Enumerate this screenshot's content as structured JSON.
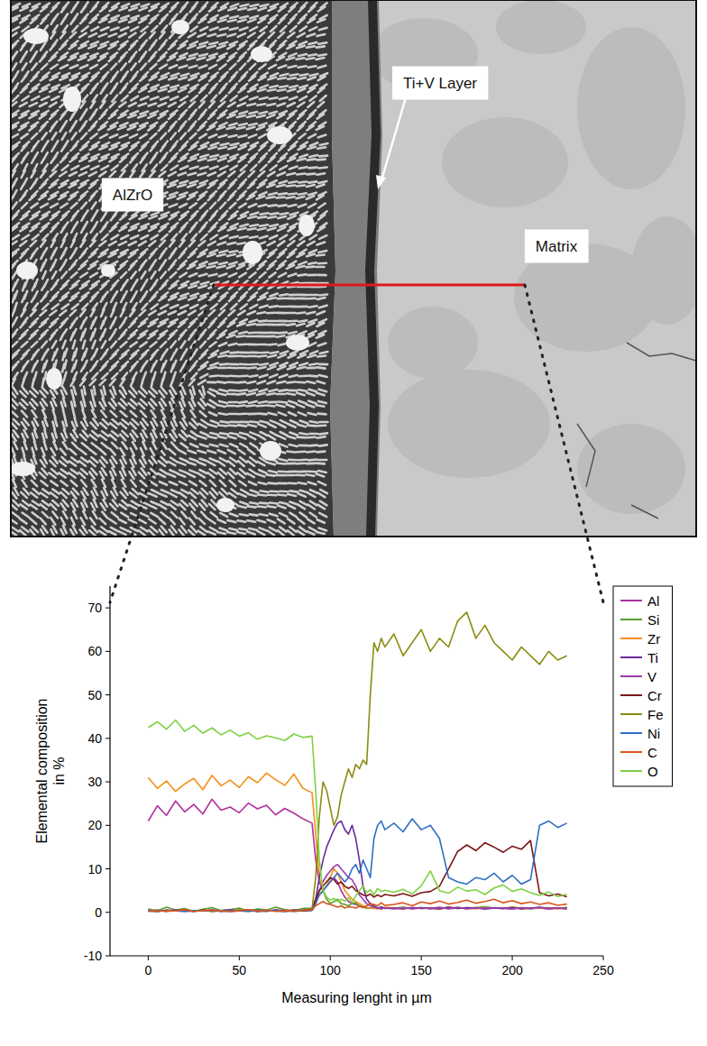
{
  "image": {
    "labels": [
      "AlZrO",
      "Ti+V Layer",
      "Matrix"
    ]
  },
  "chart_data": {
    "type": "line",
    "x_label": "Measuring lenght in µm",
    "y_label": "Elemental composition in %",
    "xlim": [
      -21,
      250
    ],
    "xticks": [
      0,
      50,
      100,
      150,
      200,
      250
    ],
    "ylim": [
      -10,
      75
    ],
    "yticks": [
      -10,
      0,
      10,
      20,
      30,
      40,
      50,
      60,
      70
    ],
    "legend": "right",
    "grid": false,
    "x": [
      0,
      5,
      10,
      15,
      20,
      25,
      30,
      35,
      40,
      45,
      50,
      55,
      60,
      65,
      70,
      75,
      80,
      85,
      90,
      92,
      94,
      96,
      98,
      100,
      102,
      104,
      106,
      108,
      110,
      112,
      114,
      116,
      118,
      120,
      122,
      124,
      126,
      128,
      130,
      135,
      140,
      145,
      150,
      155,
      160,
      165,
      170,
      175,
      180,
      185,
      190,
      195,
      200,
      205,
      210,
      215,
      220,
      225,
      230
    ],
    "series": [
      {
        "name": "Al",
        "color": "#b0309c",
        "values": [
          21,
          24.5,
          22.3,
          25.6,
          23.1,
          24.8,
          22.6,
          26,
          23.5,
          24.2,
          22.9,
          25.1,
          23.8,
          24.6,
          22.4,
          23.9,
          22.8,
          21.5,
          20.5,
          12,
          7,
          5,
          6,
          7,
          8,
          7,
          5,
          3.5,
          2.5,
          2,
          1.8,
          1.5,
          1.2,
          1,
          1,
          0.9,
          1,
          0.8,
          1,
          0.9,
          1.1,
          0.8,
          1,
          0.9,
          1.2,
          0.8,
          1,
          0.9,
          1.1,
          0.8,
          1,
          0.9,
          0.8,
          1.1,
          0.9,
          1,
          0.8,
          1,
          0.9
        ]
      },
      {
        "name": "Si",
        "color": "#5c9e2e",
        "values": [
          0.8,
          0.3,
          1.2,
          0.5,
          0.9,
          0.2,
          0.7,
          1.1,
          0.4,
          0.6,
          1,
          0.3,
          0.8,
          0.5,
          1.2,
          0.6,
          0.4,
          0.9,
          1,
          2.5,
          4,
          5,
          3,
          2,
          2.5,
          3,
          2,
          1.8,
          1.5,
          2,
          2.2,
          1.5,
          1.2,
          1,
          1.1,
          1,
          0.9,
          1.2,
          1,
          1,
          1.2,
          0.9,
          1.1,
          1,
          0.8,
          1.2,
          1,
          0.9,
          1.1,
          1.3,
          1,
          0.9,
          1.2,
          1,
          0.8,
          1.1,
          1,
          0.9,
          1.2
        ]
      },
      {
        "name": "Zr",
        "color": "#f39019",
        "values": [
          31,
          28.5,
          30.2,
          27.8,
          29.5,
          30.8,
          28.2,
          31.5,
          29.1,
          30.4,
          28.7,
          31.2,
          29.8,
          32,
          30.5,
          29.2,
          31.8,
          28.5,
          27.5,
          18,
          8,
          5,
          6,
          8,
          10,
          9,
          7,
          5,
          4,
          3,
          2.5,
          2,
          1.5,
          1.2,
          1,
          1,
          0.8,
          1,
          1.2,
          1,
          0.8,
          1.1,
          0.9,
          1,
          0.7,
          1.2,
          0.9,
          1,
          0.8,
          1.1,
          1,
          0.9,
          1.2,
          0.8,
          1,
          0.9,
          1.1,
          0.8,
          1
        ]
      },
      {
        "name": "Ti",
        "color": "#6b2a9c",
        "values": [
          0.3,
          0.5,
          0.2,
          0.6,
          0.4,
          0.3,
          0.5,
          0.2,
          0.4,
          0.6,
          0.3,
          0.5,
          0.4,
          0.2,
          0.6,
          0.3,
          0.5,
          0.4,
          0.8,
          3,
          8,
          12,
          15,
          17,
          19,
          20.5,
          21,
          19,
          18,
          20,
          17,
          12,
          6,
          3,
          2,
          1.5,
          1,
          1.2,
          0.9,
          1,
          0.8,
          1.1,
          0.9,
          1,
          0.8,
          1.2,
          0.9,
          1.1,
          1,
          0.8,
          1,
          0.9,
          1.1,
          0.8,
          1,
          1.2,
          0.9,
          1,
          0.8
        ]
      },
      {
        "name": "V",
        "color": "#9b3fa8",
        "values": [
          0.2,
          0.4,
          0.3,
          0.5,
          0.2,
          0.4,
          0.3,
          0.6,
          0.2,
          0.4,
          0.3,
          0.5,
          0.2,
          0.4,
          0.3,
          0.5,
          0.2,
          0.4,
          0.5,
          2,
          5,
          7,
          8.5,
          9.5,
          10.5,
          11,
          10,
          9,
          8,
          7.5,
          6,
          4,
          3,
          2,
          1.5,
          1.2,
          1,
          0.9,
          1,
          0.8,
          1,
          0.9,
          1.1,
          0.8,
          1,
          0.9,
          1.2,
          0.8,
          1,
          0.9,
          1.1,
          1,
          0.8,
          1,
          0.9,
          1.1,
          0.8,
          1,
          0.9
        ]
      },
      {
        "name": "Cr",
        "color": "#7b1616",
        "values": [
          0.3,
          0.2,
          0.5,
          0.3,
          0.4,
          0.2,
          0.5,
          0.3,
          0.4,
          0.2,
          0.3,
          0.5,
          0.2,
          0.4,
          0.3,
          0.2,
          0.5,
          0.3,
          0.5,
          3,
          5,
          6,
          7,
          8,
          7.5,
          6.5,
          7,
          6,
          5.5,
          6,
          5,
          4.5,
          4,
          3.8,
          4.2,
          3.5,
          4,
          3.6,
          4.1,
          3.8,
          4.3,
          3.7,
          4.5,
          4.8,
          6,
          10,
          14,
          15.5,
          14.2,
          16,
          15,
          13.8,
          15.2,
          14.5,
          16.5,
          4.5,
          3.8,
          4.2,
          3.6
        ]
      },
      {
        "name": "Fe",
        "color": "#8c8c12",
        "values": [
          0.3,
          0.5,
          0.2,
          0.4,
          0.6,
          0.3,
          0.5,
          0.2,
          0.4,
          0.3,
          0.6,
          0.2,
          0.4,
          0.5,
          0.3,
          0.4,
          0.2,
          0.5,
          0.8,
          8,
          22,
          30,
          28,
          24,
          20,
          22,
          27,
          30,
          33,
          31,
          34,
          33,
          35,
          34,
          50,
          62,
          60,
          63,
          61,
          64,
          59,
          62,
          65,
          60,
          63,
          61,
          67,
          69,
          63,
          66,
          62,
          60,
          58,
          61,
          59,
          57,
          60,
          58,
          59
        ]
      },
      {
        "name": "Ni",
        "color": "#2f6fc4",
        "values": [
          0.4,
          0.2,
          0.5,
          0.3,
          0.2,
          0.4,
          0.3,
          0.5,
          0.2,
          0.4,
          0.3,
          0.2,
          0.5,
          0.3,
          0.4,
          0.2,
          0.3,
          0.5,
          0.5,
          2,
          4,
          5,
          6,
          7,
          8,
          9,
          8,
          7,
          8,
          10,
          11,
          9,
          12,
          10,
          8,
          17,
          20,
          21,
          19,
          20.5,
          18.5,
          21.5,
          19,
          20,
          17,
          8,
          7,
          6.5,
          8,
          7.5,
          9,
          7,
          8.5,
          6.5,
          7.5,
          20,
          21,
          19.5,
          20.5
        ]
      },
      {
        "name": "C",
        "color": "#d9541e",
        "values": [
          0.5,
          0.2,
          0.4,
          0.3,
          0.6,
          0.2,
          0.4,
          0.5,
          0.3,
          0.2,
          0.4,
          0.6,
          0.3,
          0.5,
          0.2,
          0.4,
          0.3,
          0.5,
          0.6,
          1.5,
          2,
          2.5,
          2,
          1.8,
          1.5,
          1.2,
          1.5,
          1,
          1.3,
          1.2,
          1,
          1.4,
          1.1,
          1.5,
          2,
          1.8,
          1.5,
          2.2,
          1.6,
          1.8,
          2.2,
          1.5,
          2.4,
          2,
          2.6,
          1.9,
          2.3,
          2.8,
          2.1,
          2.5,
          3,
          2.2,
          2.7,
          2,
          2.4,
          1.8,
          2.2,
          1.6,
          1.9
        ]
      },
      {
        "name": "O",
        "color": "#7fd142",
        "values": [
          42.5,
          43.8,
          42.1,
          44.2,
          41.6,
          43.0,
          41.2,
          42.4,
          40.8,
          41.9,
          40.5,
          41.3,
          39.8,
          40.6,
          40.1,
          39.5,
          41.0,
          40.2,
          40.5,
          28,
          12,
          5,
          3.5,
          2.8,
          3.2,
          2.5,
          3,
          2.6,
          3.4,
          2.2,
          3.8,
          5,
          6,
          4.5,
          5.2,
          4,
          5.5,
          4.8,
          5.1,
          4.6,
          5.3,
          4.2,
          6.1,
          9.5,
          5,
          4.4,
          5.8,
          4.9,
          5.2,
          4.1,
          5.6,
          6.3,
          4.8,
          5.4,
          4.5,
          3.9,
          4.7,
          3.6,
          4.2
        ]
      }
    ]
  }
}
